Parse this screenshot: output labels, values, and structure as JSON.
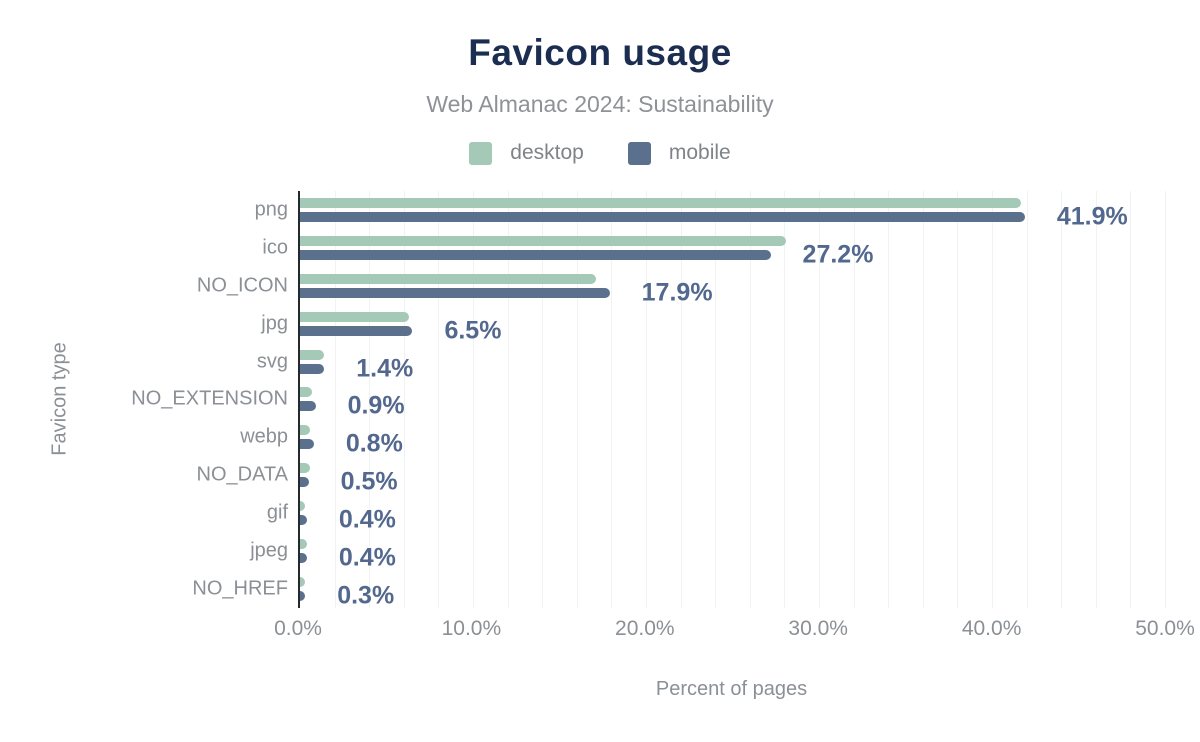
{
  "chart": {
    "title": "Favicon usage",
    "subtitle": "Web Almanac 2024: Sustainability",
    "x_axis_title": "Percent of pages",
    "y_axis_title": "Favicon type"
  },
  "colors": {
    "title": "#1b2d50",
    "subtitle_gray": "#8e9297",
    "axis_text_gray": "#8b9096",
    "data_label": "#53688e",
    "desktop_green": "#a4c9b6",
    "mobile_slate": "#5b708d",
    "axis_line": "#25282c",
    "gridline": "#f1f2f2"
  },
  "chart_data": {
    "type": "bar",
    "orientation": "horizontal",
    "title": "Favicon usage",
    "subtitle": "Web Almanac 2024: Sustainability",
    "xlabel": "Percent of pages",
    "ylabel": "Favicon type",
    "categories": [
      "png",
      "ico",
      "NO_ICON",
      "jpg",
      "svg",
      "NO_EXTENSION",
      "webp",
      "NO_DATA",
      "gif",
      "jpeg",
      "NO_HREF"
    ],
    "series": [
      {
        "name": "desktop",
        "color": "#a4c9b6",
        "values": [
          41.7,
          28.1,
          17.1,
          6.3,
          1.4,
          0.7,
          0.6,
          0.6,
          0.3,
          0.4,
          0.3
        ]
      },
      {
        "name": "mobile",
        "color": "#5b708d",
        "values": [
          41.9,
          27.2,
          17.9,
          6.5,
          1.4,
          0.9,
          0.8,
          0.5,
          0.4,
          0.4,
          0.3
        ]
      }
    ],
    "data_labels": [
      "41.9%",
      "27.2%",
      "17.9%",
      "6.5%",
      "1.4%",
      "0.9%",
      "0.8%",
      "0.5%",
      "0.4%",
      "0.4%",
      "0.3%"
    ],
    "data_label_series": "mobile",
    "xlim": [
      0,
      50
    ],
    "x_ticks": [
      "0.0%",
      "10.0%",
      "20.0%",
      "30.0%",
      "40.0%",
      "50.0%"
    ],
    "grid_step_percent": 2,
    "grid": true,
    "legend_position": "top"
  }
}
